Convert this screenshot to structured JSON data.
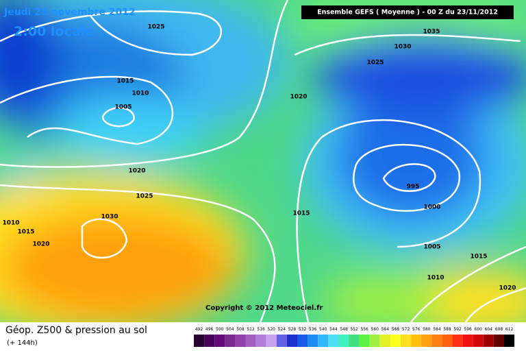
{
  "header": {
    "date": "Jeudi 29 novembre 2012",
    "time": "2:00 locale",
    "model": "Ensemble GEFS ( Moyenne )  -  00 Z du 23/11/2012"
  },
  "isobar_labels": [
    "1025",
    "1035",
    "1030",
    "1025",
    "1015",
    "1010",
    "1020",
    "1005",
    "1020",
    "1025",
    "995",
    "1000",
    "1030",
    "1015",
    "1010",
    "1015",
    "1020",
    "1005",
    "1015",
    "1010",
    "1020"
  ],
  "copyright": "Copyright © 2012 Meteociel.fr",
  "footer": {
    "title": "Géop. Z500 & pression au sol",
    "lead": "(+ 144h)",
    "scale": [
      492,
      496,
      500,
      504,
      508,
      512,
      516,
      520,
      524,
      528,
      532,
      536,
      540,
      544,
      548,
      552,
      556,
      560,
      564,
      568,
      572,
      576,
      580,
      584,
      588,
      592,
      596,
      600,
      604,
      608,
      612
    ]
  }
}
